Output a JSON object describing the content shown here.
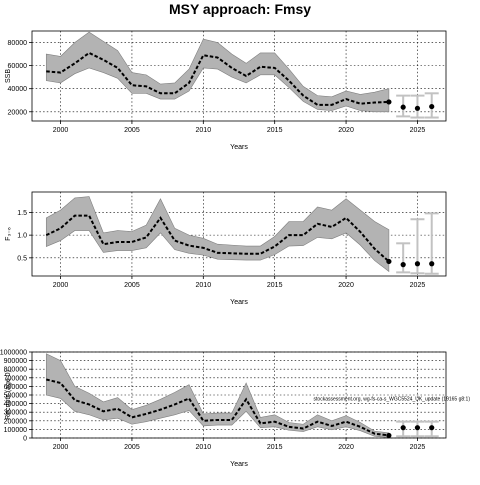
{
  "title": "MSY approach: Fmsy",
  "note": "stockassessment.org, wg-fs-ca-s_WGC5524_UK_update (19165 g8:1)",
  "chart_data": [
    {
      "type": "line",
      "name": "ssb",
      "ylabel": "SSB",
      "xlabel": "Years",
      "xlim": [
        1998,
        2027
      ],
      "ylim": [
        12000,
        90000
      ],
      "xticks": [
        "2000",
        "2005",
        "2010",
        "2015",
        "2020",
        "2025"
      ],
      "yticks": [
        "20000",
        "40000",
        "60000",
        "80000"
      ],
      "x": [
        1999,
        2000,
        2001,
        2002,
        2003,
        2004,
        2005,
        2006,
        2007,
        2008,
        2009,
        2010,
        2011,
        2012,
        2013,
        2014,
        2015,
        2016,
        2017,
        2018,
        2019,
        2020,
        2021,
        2022,
        2023
      ],
      "values": [
        55000,
        54000,
        62000,
        71000,
        65000,
        58000,
        43000,
        42000,
        36000,
        36000,
        45000,
        69000,
        67000,
        58000,
        51000,
        59000,
        58000,
        47000,
        34000,
        26000,
        26000,
        31000,
        27000,
        28000,
        28500
      ],
      "lower": [
        47000,
        45000,
        53000,
        58000,
        54000,
        49000,
        36000,
        36000,
        31000,
        31000,
        38000,
        58000,
        57000,
        50000,
        45000,
        52000,
        52000,
        41000,
        29000,
        22000,
        21000,
        25000,
        21000,
        20000,
        20000
      ],
      "upper": [
        70000,
        68000,
        80000,
        89000,
        81000,
        73000,
        54000,
        52000,
        44000,
        45000,
        57000,
        83000,
        80000,
        70000,
        62000,
        71000,
        71000,
        57000,
        42000,
        34000,
        33000,
        38000,
        35000,
        37000,
        40000
      ],
      "forecast": {
        "x": [
          2024,
          2025,
          2026
        ],
        "values": [
          24000,
          23000,
          24500
        ],
        "lower": [
          16000,
          15000,
          15000
        ],
        "upper": [
          34000,
          34000,
          36000
        ]
      }
    },
    {
      "type": "line",
      "name": "fbar",
      "ylabel": "F₃₋₆",
      "xlabel": "Years",
      "xlim": [
        1998,
        2027
      ],
      "ylim": [
        0.1,
        1.95
      ],
      "xticks": [
        "2000",
        "2005",
        "2010",
        "2015",
        "2020",
        "2025"
      ],
      "yticks": [
        "0.5",
        "1.0",
        "1.5"
      ],
      "x": [
        1999,
        2000,
        2001,
        2002,
        2003,
        2004,
        2005,
        2006,
        2007,
        2008,
        2009,
        2010,
        2011,
        2012,
        2013,
        2014,
        2015,
        2016,
        2017,
        2018,
        2019,
        2020,
        2021,
        2022,
        2023
      ],
      "values": [
        1.0,
        1.15,
        1.43,
        1.43,
        0.8,
        0.85,
        0.85,
        0.95,
        1.38,
        0.88,
        0.77,
        0.72,
        0.61,
        0.6,
        0.59,
        0.59,
        0.75,
        1.0,
        1.0,
        1.25,
        1.18,
        1.38,
        1.07,
        0.7,
        0.42
      ],
      "lower": [
        0.75,
        0.88,
        1.1,
        1.1,
        0.62,
        0.66,
        0.66,
        0.72,
        1.05,
        0.68,
        0.6,
        0.56,
        0.47,
        0.46,
        0.45,
        0.45,
        0.57,
        0.76,
        0.77,
        0.95,
        0.92,
        1.05,
        0.78,
        0.44,
        0.2
      ],
      "upper": [
        1.38,
        1.55,
        1.82,
        1.85,
        1.05,
        1.1,
        1.08,
        1.22,
        1.8,
        1.15,
        1.0,
        0.93,
        0.8,
        0.78,
        0.76,
        0.76,
        0.97,
        1.3,
        1.3,
        1.62,
        1.55,
        1.8,
        1.55,
        1.3,
        1.12
      ],
      "forecast": {
        "x": [
          2024,
          2025,
          2026
        ],
        "values": [
          0.35,
          0.37,
          0.37
        ],
        "lower": [
          0.18,
          0.16,
          0.15
        ],
        "upper": [
          0.82,
          1.35,
          1.48
        ]
      }
    },
    {
      "type": "line",
      "name": "recruitment",
      "ylabel": "Recruits (age 0)",
      "xlabel": "Years",
      "xlim": [
        1998,
        2027
      ],
      "ylim": [
        0,
        1000000
      ],
      "xticks": [
        "2000",
        "2005",
        "2010",
        "2015",
        "2020",
        "2025"
      ],
      "yticks": [
        "0",
        "100000",
        "200000",
        "300000",
        "400000",
        "500000",
        "600000",
        "700000",
        "800000",
        "900000",
        "1000000"
      ],
      "ytick_values": [
        0,
        100000,
        200000,
        300000,
        400000,
        500000,
        600000,
        700000,
        800000,
        900000,
        1000000
      ],
      "x": [
        1999,
        2000,
        2001,
        2002,
        2003,
        2004,
        2005,
        2006,
        2007,
        2008,
        2009,
        2010,
        2011,
        2012,
        2013,
        2014,
        2015,
        2016,
        2017,
        2018,
        2019,
        2020,
        2021,
        2022,
        2023
      ],
      "values": [
        680000,
        640000,
        440000,
        390000,
        310000,
        340000,
        240000,
        280000,
        330000,
        390000,
        460000,
        200000,
        210000,
        210000,
        450000,
        170000,
        190000,
        130000,
        110000,
        190000,
        140000,
        190000,
        130000,
        50000,
        30000
      ],
      "lower": [
        500000,
        460000,
        310000,
        270000,
        210000,
        230000,
        160000,
        190000,
        230000,
        270000,
        320000,
        140000,
        150000,
        150000,
        310000,
        120000,
        130000,
        90000,
        75000,
        130000,
        95000,
        130000,
        85000,
        20000,
        5000
      ],
      "upper": [
        980000,
        900000,
        600000,
        520000,
        420000,
        470000,
        330000,
        380000,
        450000,
        530000,
        620000,
        280000,
        290000,
        290000,
        640000,
        240000,
        270000,
        180000,
        160000,
        270000,
        200000,
        260000,
        180000,
        80000,
        60000
      ],
      "forecast": {
        "x": [
          2024,
          2025,
          2026
        ],
        "values": [
          120000,
          120000,
          120000
        ],
        "lower": [
          20000,
          20000,
          20000
        ],
        "upper": [
          190000,
          190000,
          190000
        ]
      }
    }
  ]
}
